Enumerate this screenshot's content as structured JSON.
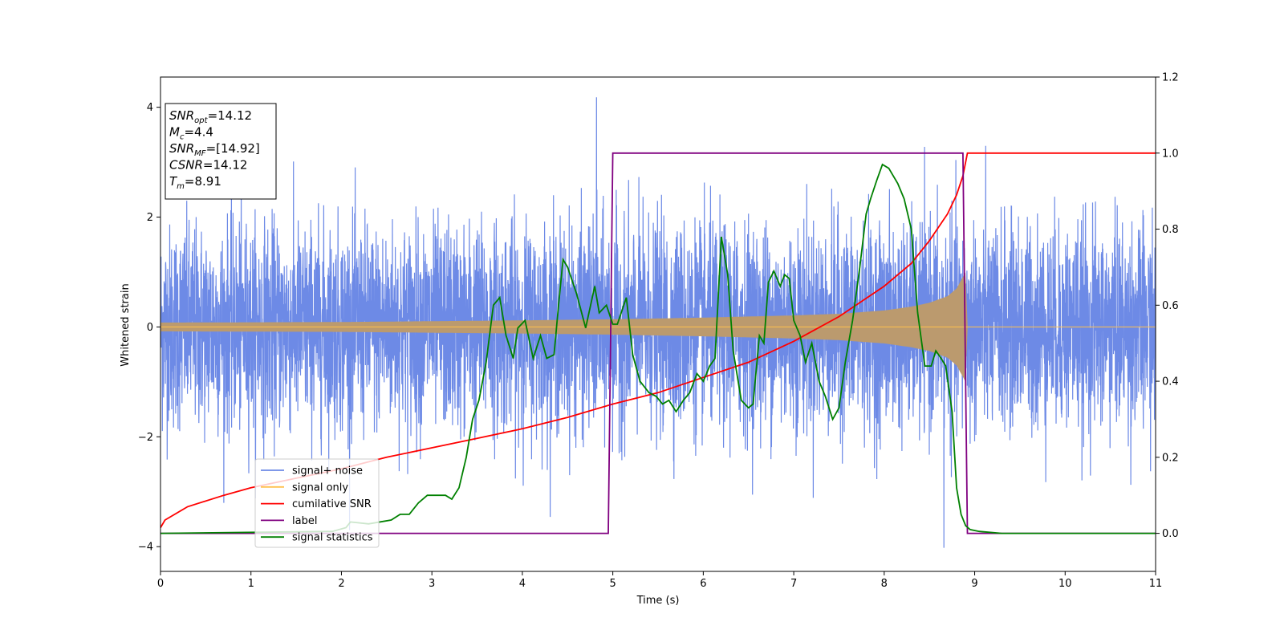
{
  "chart_data": {
    "type": "line",
    "xlabel": "Time (s)",
    "ylabel_left": "Whitened strain",
    "ylabel_right": "",
    "xlim": [
      0,
      11
    ],
    "ylim_left": [
      -4.45,
      4.55
    ],
    "ylim_right": [
      -0.1,
      1.2
    ],
    "x_ticks": [
      "0",
      "1",
      "2",
      "3",
      "4",
      "5",
      "6",
      "7",
      "8",
      "9",
      "10",
      "11"
    ],
    "y_ticks_left": [
      "−4",
      "−2",
      "0",
      "2",
      "4"
    ],
    "y_ticks_right": [
      "0.0",
      "0.2",
      "0.4",
      "0.6",
      "0.8",
      "1.0",
      "1.2"
    ],
    "info_box": [
      {
        "sym": "SNR",
        "sub": "opt",
        "val": "=14.12"
      },
      {
        "sym": "M",
        "sub": "c",
        "val": "=4.4"
      },
      {
        "sym": "SNR",
        "sub": "MF",
        "val": "=[14.92]"
      },
      {
        "sym": "CSNR",
        "sub": "",
        "val": "=14.12"
      },
      {
        "sym": "T",
        "sub": "m",
        "val": "=8.91"
      }
    ],
    "legend": {
      "placement": "lower-left",
      "entries": [
        {
          "label": "signal+ noise",
          "color": "#6d8ae6"
        },
        {
          "label": "signal only",
          "color": "#ffc04d"
        },
        {
          "label": "cumilative SNR",
          "color": "#ff0000"
        },
        {
          "label": "label",
          "color": "#800080"
        },
        {
          "label": "signal statistics",
          "color": "#008000"
        }
      ]
    },
    "series": [
      {
        "name": "signal+ noise",
        "axis": "left",
        "color": "#6d8ae6",
        "description_values": {
          "x_range": [
            0,
            11
          ],
          "y_range": [
            -4.0,
            4.2
          ],
          "typical_band": [
            -1.9,
            1.9
          ],
          "tallest_peak": {
            "x": 4.82,
            "y": 4.18
          },
          "deepest_trough": {
            "x": 8.66,
            "y": -4.02
          }
        }
      },
      {
        "name": "signal only",
        "axis": "left",
        "color": "#ffc04d",
        "envelope": {
          "x": [
            0,
            2,
            4,
            5,
            6,
            7,
            7.5,
            8,
            8.3,
            8.5,
            8.7,
            8.8,
            8.9,
            8.92,
            11
          ],
          "amp": [
            0.08,
            0.09,
            0.12,
            0.14,
            0.17,
            0.21,
            0.24,
            0.3,
            0.37,
            0.44,
            0.56,
            0.7,
            1.0,
            0,
            0
          ]
        }
      },
      {
        "name": "cumilative SNR",
        "axis": "right",
        "color": "#ff0000",
        "x": [
          0,
          0.05,
          0.3,
          0.7,
          1,
          1.5,
          2,
          2.5,
          3,
          3.5,
          4,
          4.5,
          5,
          5.5,
          6,
          6.5,
          7,
          7.5,
          8,
          8.3,
          8.5,
          8.7,
          8.8,
          8.87,
          8.92,
          11
        ],
        "y": [
          0.015,
          0.035,
          0.07,
          0.1,
          0.12,
          0.145,
          0.17,
          0.2,
          0.225,
          0.25,
          0.275,
          0.305,
          0.34,
          0.37,
          0.41,
          0.45,
          0.505,
          0.57,
          0.65,
          0.71,
          0.77,
          0.84,
          0.89,
          0.94,
          1.0,
          1.0
        ]
      },
      {
        "name": "label",
        "axis": "right",
        "color": "#800080",
        "x": [
          0,
          4.95,
          5.0,
          8.87,
          8.92,
          11
        ],
        "y": [
          0.0,
          0.0,
          1.0,
          1.0,
          0.0,
          0.0
        ]
      },
      {
        "name": "signal statistics",
        "axis": "right",
        "color": "#008000",
        "x": [
          0,
          1.9,
          2.05,
          2.1,
          2.3,
          2.55,
          2.65,
          2.75,
          2.85,
          2.95,
          3.05,
          3.15,
          3.22,
          3.3,
          3.38,
          3.45,
          3.52,
          3.6,
          3.68,
          3.75,
          3.82,
          3.9,
          3.95,
          4.03,
          4.12,
          4.2,
          4.27,
          4.35,
          4.4,
          4.45,
          4.5,
          4.6,
          4.7,
          4.8,
          4.85,
          4.93,
          5.0,
          5.05,
          5.15,
          5.22,
          5.3,
          5.4,
          5.48,
          5.55,
          5.62,
          5.7,
          5.78,
          5.85,
          5.93,
          6.0,
          6.07,
          6.13,
          6.2,
          6.27,
          6.33,
          6.42,
          6.5,
          6.55,
          6.62,
          6.67,
          6.72,
          6.78,
          6.85,
          6.9,
          6.95,
          7.0,
          7.07,
          7.13,
          7.2,
          7.28,
          7.35,
          7.43,
          7.5,
          7.57,
          7.65,
          7.73,
          7.8,
          7.85,
          7.92,
          7.98,
          8.05,
          8.1,
          8.15,
          8.22,
          8.3,
          8.37,
          8.45,
          8.52,
          8.57,
          8.63,
          8.68,
          8.75,
          8.8,
          8.85,
          8.9,
          8.95,
          9.05,
          9.15,
          9.3,
          9.5,
          11
        ],
        "y": [
          0.0,
          0.005,
          0.015,
          0.03,
          0.025,
          0.035,
          0.05,
          0.05,
          0.08,
          0.1,
          0.1,
          0.1,
          0.09,
          0.12,
          0.2,
          0.3,
          0.35,
          0.45,
          0.6,
          0.62,
          0.52,
          0.46,
          0.54,
          0.56,
          0.46,
          0.52,
          0.46,
          0.47,
          0.6,
          0.72,
          0.7,
          0.63,
          0.54,
          0.65,
          0.58,
          0.6,
          0.55,
          0.55,
          0.62,
          0.47,
          0.4,
          0.37,
          0.36,
          0.34,
          0.35,
          0.32,
          0.35,
          0.37,
          0.42,
          0.4,
          0.44,
          0.46,
          0.78,
          0.68,
          0.48,
          0.35,
          0.33,
          0.34,
          0.52,
          0.5,
          0.66,
          0.69,
          0.65,
          0.68,
          0.67,
          0.56,
          0.52,
          0.45,
          0.5,
          0.4,
          0.36,
          0.3,
          0.33,
          0.45,
          0.56,
          0.7,
          0.84,
          0.88,
          0.93,
          0.97,
          0.96,
          0.94,
          0.92,
          0.88,
          0.8,
          0.58,
          0.44,
          0.44,
          0.48,
          0.46,
          0.44,
          0.32,
          0.12,
          0.05,
          0.02,
          0.01,
          0.005,
          0.003,
          0.0,
          0.0,
          0.0
        ]
      }
    ]
  }
}
